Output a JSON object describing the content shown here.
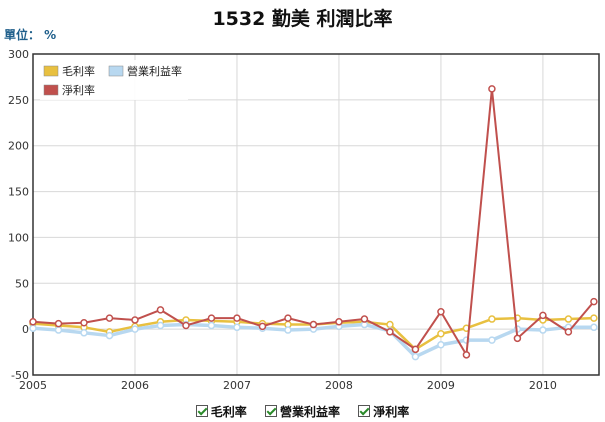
{
  "header": {
    "title": "1532 勤美 利潤比率",
    "unit": "單位： %"
  },
  "chart_data": {
    "type": "line",
    "title": "1532 勤美 利潤比率",
    "unit": "%",
    "ylim": [
      -50,
      300
    ],
    "yticks": [
      -50,
      0,
      50,
      100,
      150,
      200,
      250,
      300
    ],
    "xlim": [
      2005.0,
      2010.55
    ],
    "xticks": [
      "2005",
      "2006",
      "2007",
      "2008",
      "2009",
      "2010"
    ],
    "x": [
      2005.0,
      2005.25,
      2005.5,
      2005.75,
      2006.0,
      2006.25,
      2006.5,
      2006.75,
      2007.0,
      2007.25,
      2007.5,
      2007.75,
      2008.0,
      2008.25,
      2008.5,
      2008.75,
      2009.0,
      2009.25,
      2009.5,
      2009.75,
      2010.0,
      2010.25,
      2010.5
    ],
    "grid": true,
    "legend_position": "top-left",
    "series": [
      {
        "name": "毛利率",
        "color": "#e8c040",
        "values": [
          6,
          4,
          2,
          -3,
          3,
          8,
          10,
          9,
          8,
          6,
          5,
          5,
          7,
          8,
          5,
          -22,
          -5,
          1,
          11,
          12,
          10,
          11,
          12
        ]
      },
      {
        "name": "營業利益率",
        "color": "#b8d8f0",
        "values": [
          1,
          -1,
          -4,
          -7,
          0,
          4,
          5,
          4,
          2,
          1,
          -1,
          0,
          3,
          5,
          -2,
          -30,
          -17,
          -12,
          -12,
          0,
          -1,
          2,
          2
        ]
      },
      {
        "name": "淨利率",
        "color": "#c0504d",
        "values": [
          8,
          6,
          7,
          12,
          10,
          21,
          4,
          12,
          12,
          3,
          12,
          5,
          8,
          11,
          -3,
          -22,
          19,
          -28,
          262,
          -10,
          15,
          -3,
          30
        ]
      }
    ]
  },
  "bottom_legend": [
    {
      "label": "毛利率"
    },
    {
      "label": "營業利益率"
    },
    {
      "label": "淨利率"
    }
  ]
}
